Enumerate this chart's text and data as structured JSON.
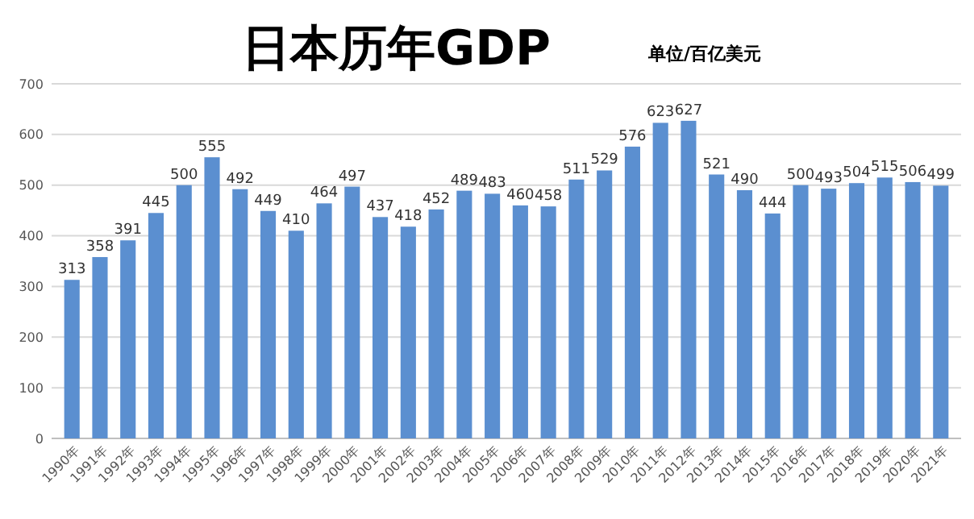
{
  "chart_data": {
    "type": "bar",
    "title": "日本历年GDP",
    "subtitle": "单位/百亿美元",
    "categories": [
      "1990年",
      "1991年",
      "1992年",
      "1993年",
      "1994年",
      "1995年",
      "1996年",
      "1997年",
      "1998年",
      "1999年",
      "2000年",
      "2001年",
      "2002年",
      "2003年",
      "2004年",
      "2005年",
      "2006年",
      "2007年",
      "2008年",
      "2009年",
      "2010年",
      "2011年",
      "2012年",
      "2013年",
      "2014年",
      "2015年",
      "2016年",
      "2017年",
      "2018年",
      "2019年",
      "2020年",
      "2021年"
    ],
    "values": [
      313,
      358,
      391,
      445,
      500,
      555,
      492,
      449,
      410,
      464,
      497,
      437,
      418,
      452,
      489,
      483,
      460,
      458,
      511,
      529,
      576,
      623,
      627,
      521,
      490,
      444,
      500,
      493,
      504,
      515,
      506,
      499
    ],
    "color": "#5b8fd0",
    "ylim": [
      0,
      700
    ],
    "yticks": [
      0,
      100,
      200,
      300,
      400,
      500,
      600,
      700
    ],
    "grid": "y",
    "data_labels": true
  }
}
